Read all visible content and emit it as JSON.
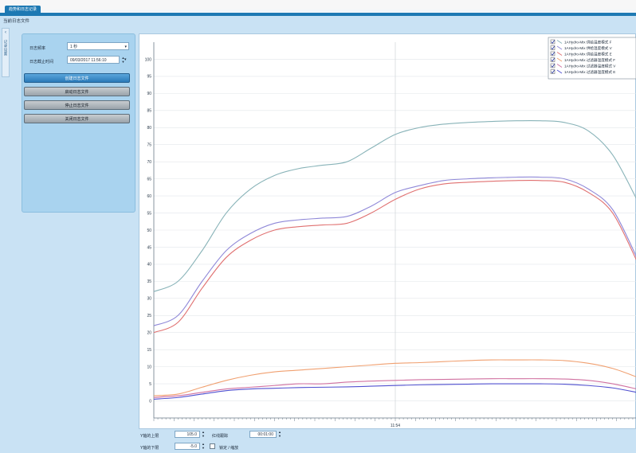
{
  "window": {
    "tab_label": "趋势和日志记录",
    "pane_title": "当前日志文件"
  },
  "sidebar": {
    "collapse_icon": "chevron-left-icon",
    "vertical_label": "记录设置"
  },
  "settings": {
    "interval_label": "日志频率",
    "interval_value": "1 秒",
    "end_time_label": "日志截止时间",
    "end_time_value": "09/03/2017 11:56:10"
  },
  "buttons": {
    "create": "创建日志文件",
    "start": "启动日志文件",
    "stop": "停止日志文件",
    "close": "关闭日志文件"
  },
  "bottom": {
    "y_max_label": "Y轴的上限",
    "y_max_value": "105.0",
    "scroll_speed_label": "红线跟踪",
    "scroll_speed_value": "00:01:00",
    "y_min_label": "Y轴的下限",
    "y_min_value": "-5.0",
    "autoscale_label": "锁定 / 缩放"
  },
  "chart_data": {
    "type": "line",
    "ylim": [
      -5,
      105
    ],
    "y_ticks": [
      0,
      5,
      10,
      15,
      20,
      25,
      30,
      35,
      40,
      45,
      50,
      55,
      60,
      65,
      70,
      75,
      80,
      85,
      90,
      95,
      100
    ],
    "x_tick_label": "11:54",
    "x": [
      0,
      1,
      2,
      3,
      4,
      5,
      6,
      7,
      8,
      9,
      10,
      11,
      12,
      13,
      14,
      15,
      16,
      17,
      18,
      19,
      20
    ],
    "series": [
      {
        "name": "1AHydro-Mix 供给温度模式 F",
        "color": "#88b3b8",
        "values": [
          32,
          35,
          44,
          55,
          62,
          66,
          68,
          69,
          70,
          74,
          78,
          80,
          81,
          81.5,
          81.8,
          82,
          82,
          81.5,
          79,
          72,
          59
        ]
      },
      {
        "name": "1AHydro-Mix 供给温度模式 V",
        "color": "#8f88d8",
        "values": [
          22,
          25,
          35,
          44,
          49,
          52,
          53,
          53.5,
          54,
          57,
          61,
          63,
          64.5,
          65,
          65.3,
          65.5,
          65.5,
          65,
          62,
          56,
          42
        ]
      },
      {
        "name": "1AHydro-Mix 供给温度模式 E",
        "color": "#e07070",
        "values": [
          20,
          23,
          33,
          42,
          47,
          50,
          51,
          51.5,
          52,
          55,
          59,
          62,
          63.5,
          64,
          64.3,
          64.5,
          64.5,
          64,
          61,
          55,
          41
        ]
      },
      {
        "name": "1AHydro-Mix 过滤器温度模式 F",
        "color": "#f0a070",
        "values": [
          1.5,
          2,
          4,
          6,
          7.5,
          8.5,
          9,
          9.5,
          10,
          10.5,
          11,
          11.2,
          11.5,
          11.8,
          12,
          12,
          12,
          11.8,
          11,
          9.5,
          7
        ]
      },
      {
        "name": "1AHydro-Mix 过滤器温度模式 V",
        "color": "#d070a0",
        "values": [
          1,
          1.5,
          2.5,
          3.5,
          4,
          4.5,
          5,
          5,
          5.5,
          5.8,
          6,
          6.2,
          6.3,
          6.4,
          6.5,
          6.5,
          6.5,
          6.4,
          6,
          5,
          3.5
        ]
      },
      {
        "name": "1AHydro-Mix 过滤器温度模式 E",
        "color": "#5050d0",
        "values": [
          0.5,
          1,
          2,
          3,
          3.5,
          3.7,
          3.9,
          4,
          4.1,
          4.3,
          4.5,
          4.7,
          4.8,
          4.9,
          5,
          5,
          5,
          4.9,
          4.5,
          3.8,
          2.5
        ]
      }
    ]
  }
}
